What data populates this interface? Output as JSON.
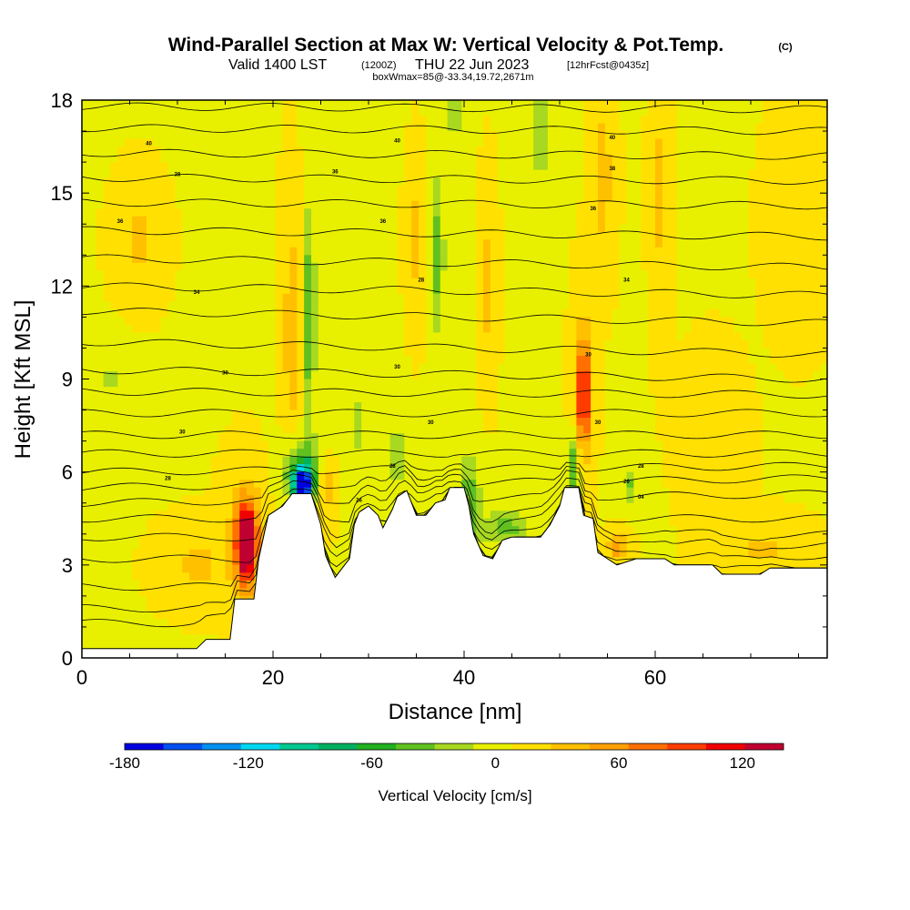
{
  "chart_data": {
    "type": "heatmap",
    "title": "Wind-Parallel Section at Max W: Vertical Velocity & Pot.Temp.",
    "title_badge": "(C)",
    "subtitle_main": "Valid 1400 LST",
    "subtitle_z": "(1200Z)",
    "subtitle_date": "THU 22 Jun 2023",
    "subtitle_fcst": "[12hrFcst@0435z]",
    "box_line": "boxWmax=85@-33.34,19.72,2671m",
    "xlabel": "Distance [nm]",
    "ylabel": "Height [Kft MSL]",
    "xlim": [
      0,
      78
    ],
    "ylim": [
      0,
      18
    ],
    "x_ticks": [
      0,
      20,
      40,
      60
    ],
    "y_ticks": [
      0,
      3,
      6,
      9,
      12,
      15,
      18
    ],
    "colorbar": {
      "title": "Vertical Velocity [cm/s]",
      "ticks": [
        -180,
        -120,
        -60,
        0,
        60,
        120
      ],
      "min": -180,
      "max": 140,
      "colors": [
        "#0000e0",
        "#0050f0",
        "#0090f0",
        "#00d8f0",
        "#00c890",
        "#00b060",
        "#20b020",
        "#60c020",
        "#a8d820",
        "#e8f000",
        "#ffe000",
        "#ffc000",
        "#ffa000",
        "#ff7000",
        "#ff3c00",
        "#f00000",
        "#c00030"
      ]
    },
    "terrain": [
      [
        0,
        0.3
      ],
      [
        12,
        0.3
      ],
      [
        13,
        0.6
      ],
      [
        15.5,
        0.6
      ],
      [
        16,
        1.9
      ],
      [
        18,
        1.9
      ],
      [
        18.5,
        3.2
      ],
      [
        19.5,
        4.6
      ],
      [
        21,
        4.9
      ],
      [
        22,
        5.3
      ],
      [
        24,
        5.3
      ],
      [
        25,
        4.3
      ],
      [
        25.5,
        3.3
      ],
      [
        26.5,
        2.6
      ],
      [
        28,
        3.2
      ],
      [
        28.5,
        4.3
      ],
      [
        29,
        4.7
      ],
      [
        30,
        4.9
      ],
      [
        31,
        4.6
      ],
      [
        31.5,
        4.2
      ],
      [
        32.5,
        4.8
      ],
      [
        33,
        5.2
      ],
      [
        34,
        5.4
      ],
      [
        34.5,
        5.0
      ],
      [
        35,
        4.6
      ],
      [
        36,
        4.6
      ],
      [
        37,
        5.0
      ],
      [
        38,
        5.1
      ],
      [
        38.5,
        5.5
      ],
      [
        40,
        5.5
      ],
      [
        40.5,
        4.9
      ],
      [
        41,
        4.0
      ],
      [
        42,
        3.3
      ],
      [
        43,
        3.2
      ],
      [
        44,
        3.8
      ],
      [
        45,
        3.9
      ],
      [
        48,
        3.9
      ],
      [
        49,
        4.3
      ],
      [
        50,
        4.9
      ],
      [
        50.5,
        5.5
      ],
      [
        52,
        5.5
      ],
      [
        52.5,
        4.6
      ],
      [
        53.5,
        4.5
      ],
      [
        54,
        3.4
      ],
      [
        55,
        3.2
      ],
      [
        56,
        3.0
      ],
      [
        58,
        3.2
      ],
      [
        61,
        3.2
      ],
      [
        62,
        3.0
      ],
      [
        66,
        3.0
      ],
      [
        67,
        2.7
      ],
      [
        71,
        2.7
      ],
      [
        72,
        2.9
      ],
      [
        78,
        2.9
      ]
    ],
    "theta_contours": [
      {
        "level": "302",
        "h0": 0.8,
        "h1": 0.8
      },
      {
        "level": "303",
        "h0": 1.6,
        "h1": 1.6
      },
      {
        "level": "304",
        "h0": 2.3,
        "h1": 2.3
      },
      {
        "level": "305",
        "h0": 3.2,
        "h1": 3.2
      },
      {
        "level": "306",
        "h0": 3.9,
        "h1": 3.9
      },
      {
        "level": "307",
        "h0": 4.5,
        "h1": 4.5
      },
      {
        "level": "308",
        "h0": 5.0,
        "h1": 5.3
      },
      {
        "level": "309",
        "h0": 5.5,
        "h1": 5.8
      },
      {
        "level": "310",
        "h0": 6.0,
        "h1": 6.2
      },
      {
        "level": "311",
        "h0": 6.6,
        "h1": 6.6
      },
      {
        "level": "312",
        "h0": 7.2,
        "h1": 7.2
      },
      {
        "level": "313",
        "h0": 7.9,
        "h1": 7.9
      },
      {
        "level": "314",
        "h0": 8.6,
        "h1": 8.5
      },
      {
        "level": "315",
        "h0": 9.3,
        "h1": 9.0
      },
      {
        "level": "316",
        "h0": 10.2,
        "h1": 9.8
      },
      {
        "level": "317",
        "h0": 11.2,
        "h1": 10.8
      },
      {
        "level": "318",
        "h0": 12.0,
        "h1": 11.7
      },
      {
        "level": "319",
        "h0": 12.9,
        "h1": 12.6
      },
      {
        "level": "320",
        "h0": 13.8,
        "h1": 13.6
      },
      {
        "level": "321",
        "h0": 14.7,
        "h1": 14.6
      },
      {
        "level": "322",
        "h0": 15.5,
        "h1": 15.4
      },
      {
        "level": "323",
        "h0": 16.3,
        "h1": 16.2
      },
      {
        "level": "324",
        "h0": 17.1,
        "h1": 17.0
      },
      {
        "level": "325",
        "h0": 17.8,
        "h1": 17.7
      }
    ],
    "contour_labels": [
      {
        "text": "40",
        "x": 7.0,
        "y": 16.6
      },
      {
        "text": "40",
        "x": 33.0,
        "y": 16.7
      },
      {
        "text": "40",
        "x": 55.5,
        "y": 16.8
      },
      {
        "text": "38",
        "x": 10.0,
        "y": 15.6
      },
      {
        "text": "36",
        "x": 26.5,
        "y": 15.7
      },
      {
        "text": "38",
        "x": 55.5,
        "y": 15.8
      },
      {
        "text": "36",
        "x": 4.0,
        "y": 14.1
      },
      {
        "text": "36",
        "x": 31.5,
        "y": 14.1
      },
      {
        "text": "36",
        "x": 53.5,
        "y": 14.5
      },
      {
        "text": "34",
        "x": 12.0,
        "y": 11.8
      },
      {
        "text": "28",
        "x": 35.5,
        "y": 12.2
      },
      {
        "text": "34",
        "x": 57.0,
        "y": 12.2
      },
      {
        "text": "30",
        "x": 15.0,
        "y": 9.2
      },
      {
        "text": "30",
        "x": 33.0,
        "y": 9.4
      },
      {
        "text": "30",
        "x": 53.0,
        "y": 9.8
      },
      {
        "text": "30",
        "x": 10.5,
        "y": 7.3
      },
      {
        "text": "30",
        "x": 36.5,
        "y": 7.6
      },
      {
        "text": "30",
        "x": 54.0,
        "y": 7.6
      },
      {
        "text": "28",
        "x": 9.0,
        "y": 5.8
      },
      {
        "text": "28",
        "x": 32.5,
        "y": 6.2
      },
      {
        "text": "28",
        "x": 58.5,
        "y": 6.2
      },
      {
        "text": "26",
        "x": 29.0,
        "y": 5.1
      },
      {
        "text": "26",
        "x": 57.0,
        "y": 5.7
      },
      {
        "text": "04",
        "x": 58.5,
        "y": 5.2
      }
    ],
    "w_features": [
      {
        "x": 17.2,
        "y": 3.7,
        "sx": 0.9,
        "sy": 1.1,
        "w": 135
      },
      {
        "x": 17.2,
        "y": 3.8,
        "sx": 1.8,
        "sy": 1.8,
        "w": 60
      },
      {
        "x": 22.0,
        "y": 10.5,
        "sx": 0.9,
        "sy": 3.5,
        "w": 35
      },
      {
        "x": 23.8,
        "y": 11.0,
        "sx": 0.6,
        "sy": 3.5,
        "w": -60
      },
      {
        "x": 23.1,
        "y": 5.6,
        "sx": 1.0,
        "sy": 0.5,
        "w": -170
      },
      {
        "x": 23.0,
        "y": 6.0,
        "sx": 2.0,
        "sy": 1.0,
        "w": -70
      },
      {
        "x": 25.5,
        "y": 5.5,
        "sx": 0.9,
        "sy": 0.9,
        "w": 40
      },
      {
        "x": 35.0,
        "y": 13.5,
        "sx": 0.8,
        "sy": 2.0,
        "w": 30
      },
      {
        "x": 37.2,
        "y": 13.0,
        "sx": 0.7,
        "sy": 2.5,
        "w": -50
      },
      {
        "x": 40.5,
        "y": 5.0,
        "sx": 1.2,
        "sy": 1.5,
        "w": -50
      },
      {
        "x": 44.5,
        "y": 4.2,
        "sx": 2.5,
        "sy": 0.6,
        "w": -45
      },
      {
        "x": 52.5,
        "y": 8.5,
        "sx": 0.5,
        "sy": 1.4,
        "w": 100
      },
      {
        "x": 52.5,
        "y": 8.8,
        "sx": 0.9,
        "sy": 2.5,
        "w": 45
      },
      {
        "x": 51.5,
        "y": 6.2,
        "sx": 0.5,
        "sy": 1.0,
        "w": -60
      },
      {
        "x": 54.5,
        "y": 15.5,
        "sx": 1.0,
        "sy": 2.5,
        "w": 30
      },
      {
        "x": 57.5,
        "y": 5.6,
        "sx": 0.5,
        "sy": 0.6,
        "w": -40
      },
      {
        "x": 56.0,
        "y": 3.6,
        "sx": 1.0,
        "sy": 0.4,
        "w": 55
      },
      {
        "x": 33.0,
        "y": 6.5,
        "sx": 0.8,
        "sy": 1.0,
        "w": -40
      },
      {
        "x": 29.0,
        "y": 7.5,
        "sx": 0.5,
        "sy": 1.0,
        "w": -35
      },
      {
        "x": 42.5,
        "y": 12.0,
        "sx": 0.7,
        "sy": 2.5,
        "w": 28
      },
      {
        "x": 60.5,
        "y": 15.0,
        "sx": 0.8,
        "sy": 3.5,
        "w": 25
      },
      {
        "x": 12.0,
        "y": 3.0,
        "sx": 3.0,
        "sy": 1.0,
        "w": 25
      },
      {
        "x": 6.0,
        "y": 13.5,
        "sx": 2.0,
        "sy": 1.5,
        "w": 25
      },
      {
        "x": 3.0,
        "y": 9.0,
        "sx": 2.0,
        "sy": 1.0,
        "w": -20
      },
      {
        "x": 48.0,
        "y": 17.0,
        "sx": 1.0,
        "sy": 1.5,
        "w": -40
      },
      {
        "x": 39.0,
        "y": 17.5,
        "sx": 0.6,
        "sy": 1.0,
        "w": -40
      },
      {
        "x": 66.0,
        "y": 7.0,
        "sx": 2.5,
        "sy": 2.0,
        "w": 18
      },
      {
        "x": 71.0,
        "y": 3.5,
        "sx": 4.0,
        "sy": 0.8,
        "w": 22
      },
      {
        "x": 75.0,
        "y": 14.0,
        "sx": 2.5,
        "sy": 2.5,
        "w": 18
      }
    ]
  }
}
